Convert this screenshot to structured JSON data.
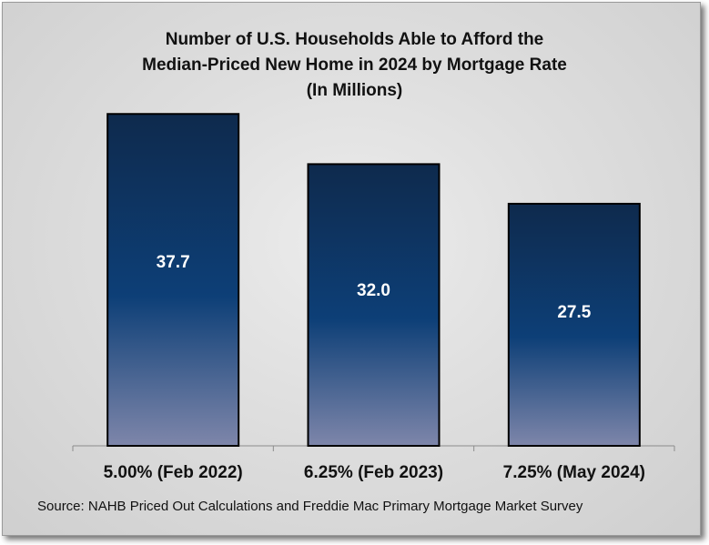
{
  "chart_data": {
    "type": "bar",
    "title_lines": [
      "Number of U.S. Households Able to Afford the",
      "Median-Priced New Home in 2024 by Mortgage Rate",
      "(In Millions)"
    ],
    "categories": [
      "5.00% (Feb 2022)",
      "6.25% (Feb 2023)",
      "7.25% (May 2024)"
    ],
    "values": [
      37.7,
      32.0,
      27.5
    ],
    "value_labels": [
      "37.7",
      "32.0",
      "27.5"
    ],
    "ylim": [
      0,
      40
    ],
    "grid": false,
    "legend": "none",
    "source": "Source: NAHB Priced Out Calculations and Freddie  Mac Primary  Mortgage  Market  Survey",
    "colors": {
      "bar_top": "#0e2a4d",
      "bar_mid": "#0d3f77",
      "bar_bottom": "#7e86aa",
      "bar_edge": "#000000"
    }
  }
}
